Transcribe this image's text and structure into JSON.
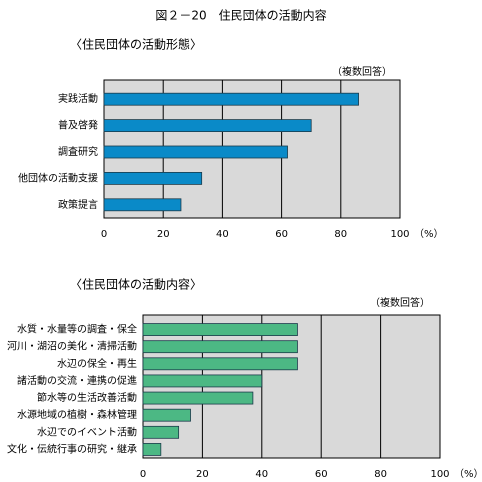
{
  "figure_title": "図２－20　住民団体の活動内容",
  "chart_data": [
    {
      "type": "barh",
      "title": "〈住民団体の活動形態〉",
      "note": "（複数回答）",
      "unit": "（%）",
      "categories": [
        "実践活動",
        "普及啓発",
        "調査研究",
        "他団体の活動支援",
        "政策提言"
      ],
      "values": [
        86,
        70,
        62,
        33,
        26
      ],
      "color": "#0a8ac8",
      "xlim": [
        0,
        100
      ],
      "xticks": [
        0,
        20,
        40,
        60,
        80,
        100
      ],
      "grid": true
    },
    {
      "type": "barh",
      "title": "〈住民団体の活動内容〉",
      "note": "（複数回答）",
      "unit": "（%）",
      "categories": [
        "水質・水量等の調査・保全",
        "河川・湖沼の美化・清掃活動",
        "水辺の保全・再生",
        "諸活動の交流・連携の促進",
        "節水等の生活改善活動",
        "水源地域の植樹・森林管理",
        "水辺でのイベント活動",
        "文化・伝統行事の研究・継承"
      ],
      "values": [
        52,
        52,
        52,
        40,
        37,
        16,
        12,
        6
      ],
      "color": "#4cb884",
      "xlim": [
        0,
        100
      ],
      "xticks": [
        0,
        20,
        40,
        60,
        80,
        100
      ],
      "grid": true
    }
  ]
}
